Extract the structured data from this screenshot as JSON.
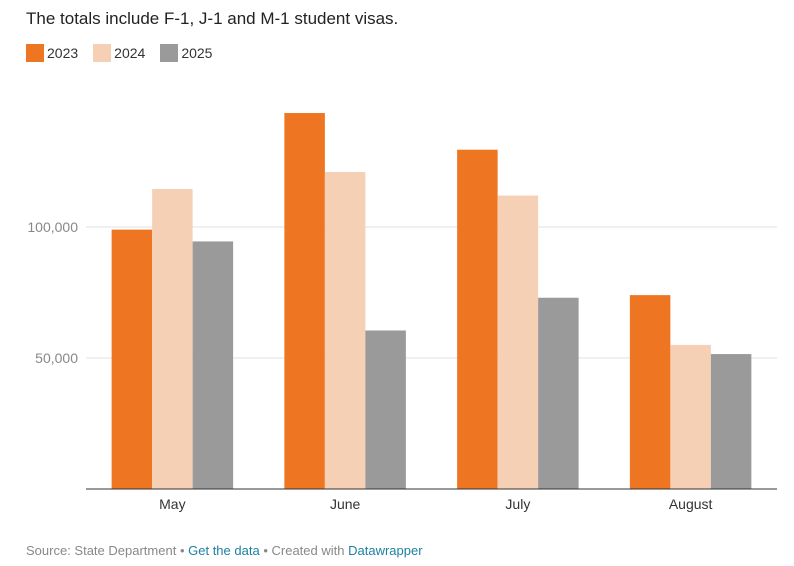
{
  "subtitle": "The totals include F-1, J-1 and M-1 student visas.",
  "colors": {
    "2023": "#ee7623",
    "2024": "#f6d0b5",
    "2025": "#9a9a9a"
  },
  "footer": {
    "source": "Source: State Department",
    "separator": "•",
    "get_data": "Get the data",
    "created_with": "Created with",
    "datawrapper": "Datawrapper"
  },
  "chart_data": {
    "type": "bar",
    "subtitle": "The totals include F-1, J-1 and M-1 student visas.",
    "categories": [
      "May",
      "June",
      "July",
      "August"
    ],
    "series": [
      {
        "name": "2023",
        "values": [
          99000,
          143500,
          129500,
          74000
        ]
      },
      {
        "name": "2024",
        "values": [
          114500,
          121000,
          112000,
          55000
        ]
      },
      {
        "name": "2025",
        "values": [
          94500,
          60500,
          73000,
          51500
        ]
      }
    ],
    "yticks": [
      {
        "value": 50000,
        "label": "50,000"
      },
      {
        "value": 100000,
        "label": "100,000"
      }
    ],
    "ylim": [
      0,
      165000
    ],
    "grid": true,
    "legend": "top-left"
  }
}
